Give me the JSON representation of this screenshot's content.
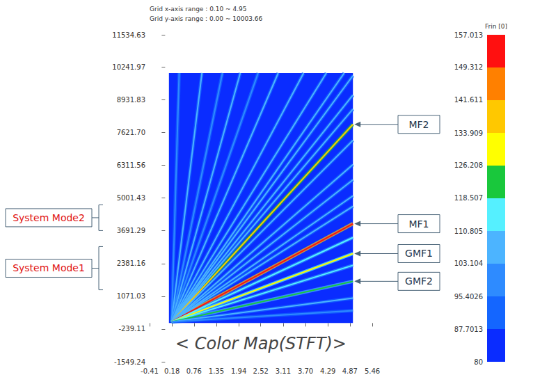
{
  "chart_data": {
    "type": "line",
    "caption": "< Color Map(STFT)>",
    "header": [
      "Grid x-axis range : 0.10 ~ 4.95",
      "Grid y-axis range : 0.00 ~ 10003.66"
    ],
    "grid_range": {
      "x": [
        0.1,
        4.95
      ],
      "y": [
        0.0,
        10003.66
      ]
    },
    "background_level": 80,
    "xlim": [
      -0.41,
      5.46
    ],
    "xticks": [
      -0.41,
      0.18,
      0.76,
      1.35,
      1.94,
      2.52,
      3.11,
      {
        "value": 3.7,
        "label": "3.70"
      },
      4.29,
      4.87,
      5.46
    ],
    "ylim": [
      -1549.24,
      11534.63
    ],
    "yticks": [
      -1549.24,
      -239.11,
      1071.03,
      2381.16,
      3691.29,
      5001.43,
      6311.56,
      {
        "value": 7621.7,
        "label": "7621.70"
      },
      8931.83,
      10241.97,
      11534.63
    ],
    "grid": false,
    "series": [
      {
        "x": [
          0.17,
          0.37
        ],
        "values": [
          50,
          10003.66
        ],
        "level": 100
      },
      {
        "x": [
          0.17,
          0.97
        ],
        "values": [
          50,
          10003.66
        ],
        "level": 104
      },
      {
        "x": [
          0.17,
          1.51
        ],
        "values": [
          50,
          10003.66
        ],
        "level": 102
      },
      {
        "x": [
          0.17,
          1.98
        ],
        "values": [
          50,
          10003.66
        ],
        "level": 105
      },
      {
        "x": [
          0.17,
          2.45
        ],
        "values": [
          50,
          10003.66
        ],
        "level": 103
      },
      {
        "x": [
          0.17,
          2.98
        ],
        "values": [
          50,
          10003.66
        ],
        "level": 106
      },
      {
        "x": [
          0.17,
          3.65
        ],
        "values": [
          50,
          10003.66
        ],
        "level": 104
      },
      {
        "x": [
          0.17,
          4.25
        ],
        "values": [
          50,
          10003.66
        ],
        "level": 107
      },
      {
        "x": [
          0.17,
          4.72
        ],
        "values": [
          50,
          10003.66
        ],
        "level": 105
      },
      {
        "x": [
          0.17,
          4.95
        ],
        "values": [
          50,
          9900
        ],
        "level": 108
      },
      {
        "x": [
          0.17,
          4.95
        ],
        "values": [
          50,
          9120
        ],
        "level": 108
      },
      {
        "x": [
          0.17,
          4.95
        ],
        "values": [
          50,
          8560
        ],
        "level": 106
      },
      {
        "x": [
          0.17,
          4.95
        ],
        "values": [
          50,
          7950
        ],
        "level": 136
      },
      {
        "x": [
          0.17,
          4.95
        ],
        "values": [
          50,
          7310
        ],
        "level": 106
      },
      {
        "x": [
          0.17,
          4.95
        ],
        "values": [
          50,
          6340
        ],
        "level": 104
      },
      {
        "x": [
          0.17,
          4.95
        ],
        "values": [
          50,
          5730
        ],
        "level": 108
      },
      {
        "x": [
          0.17,
          4.95
        ],
        "values": [
          50,
          5090
        ],
        "level": 104
      },
      {
        "x": [
          0.17,
          4.95
        ],
        "values": [
          50,
          4670
        ],
        "level": 109
      },
      {
        "x": [
          0.17,
          4.95
        ],
        "values": [
          50,
          3975
        ],
        "level": 150
      },
      {
        "x": [
          0.17,
          4.95
        ],
        "values": [
          50,
          3420
        ],
        "level": 114
      },
      {
        "x": [
          0.17,
          4.95
        ],
        "values": [
          50,
          2780
        ],
        "level": 132
      },
      {
        "x": [
          0.17,
          4.95
        ],
        "values": [
          50,
          2310
        ],
        "level": 113
      },
      {
        "x": [
          0.17,
          4.95
        ],
        "values": [
          50,
          1670
        ],
        "level": 125
      },
      {
        "x": [
          0.17,
          4.95
        ],
        "values": [
          50,
          1000
        ],
        "level": 106
      },
      {
        "x": [
          0.17,
          4.95
        ],
        "values": [
          50,
          500
        ],
        "level": 98
      }
    ],
    "annotations": [
      {
        "text": "MF2",
        "x": 4.95,
        "y": 7950
      },
      {
        "text": "MF1",
        "x": 4.95,
        "y": 3975
      },
      {
        "text": "GMF1",
        "x": 4.95,
        "y": 2780
      },
      {
        "text": "GMF2",
        "x": 4.95,
        "y": 1670
      }
    ],
    "brackets": [
      {
        "text": "System Mode2",
        "ylim": [
          3700,
          4730
        ]
      },
      {
        "text": "System Mode1",
        "ylim": [
          1330,
          3060
        ]
      }
    ],
    "colorbar": {
      "title": "Frin [0]",
      "range": [
        80,
        157.013
      ],
      "ticks": [
        80,
        87.7013,
        95.4026,
        103.104,
        110.805,
        118.507,
        126.208,
        133.909,
        141.611,
        149.312,
        157.013
      ],
      "colors": [
        "#0a2cff",
        "#1466ff",
        "#2e8bff",
        "#4cb4ff",
        "#55f0ff",
        "#19c83c",
        "#ffff00",
        "#ffc800",
        "#ff8000",
        "#ff1010"
      ]
    }
  }
}
